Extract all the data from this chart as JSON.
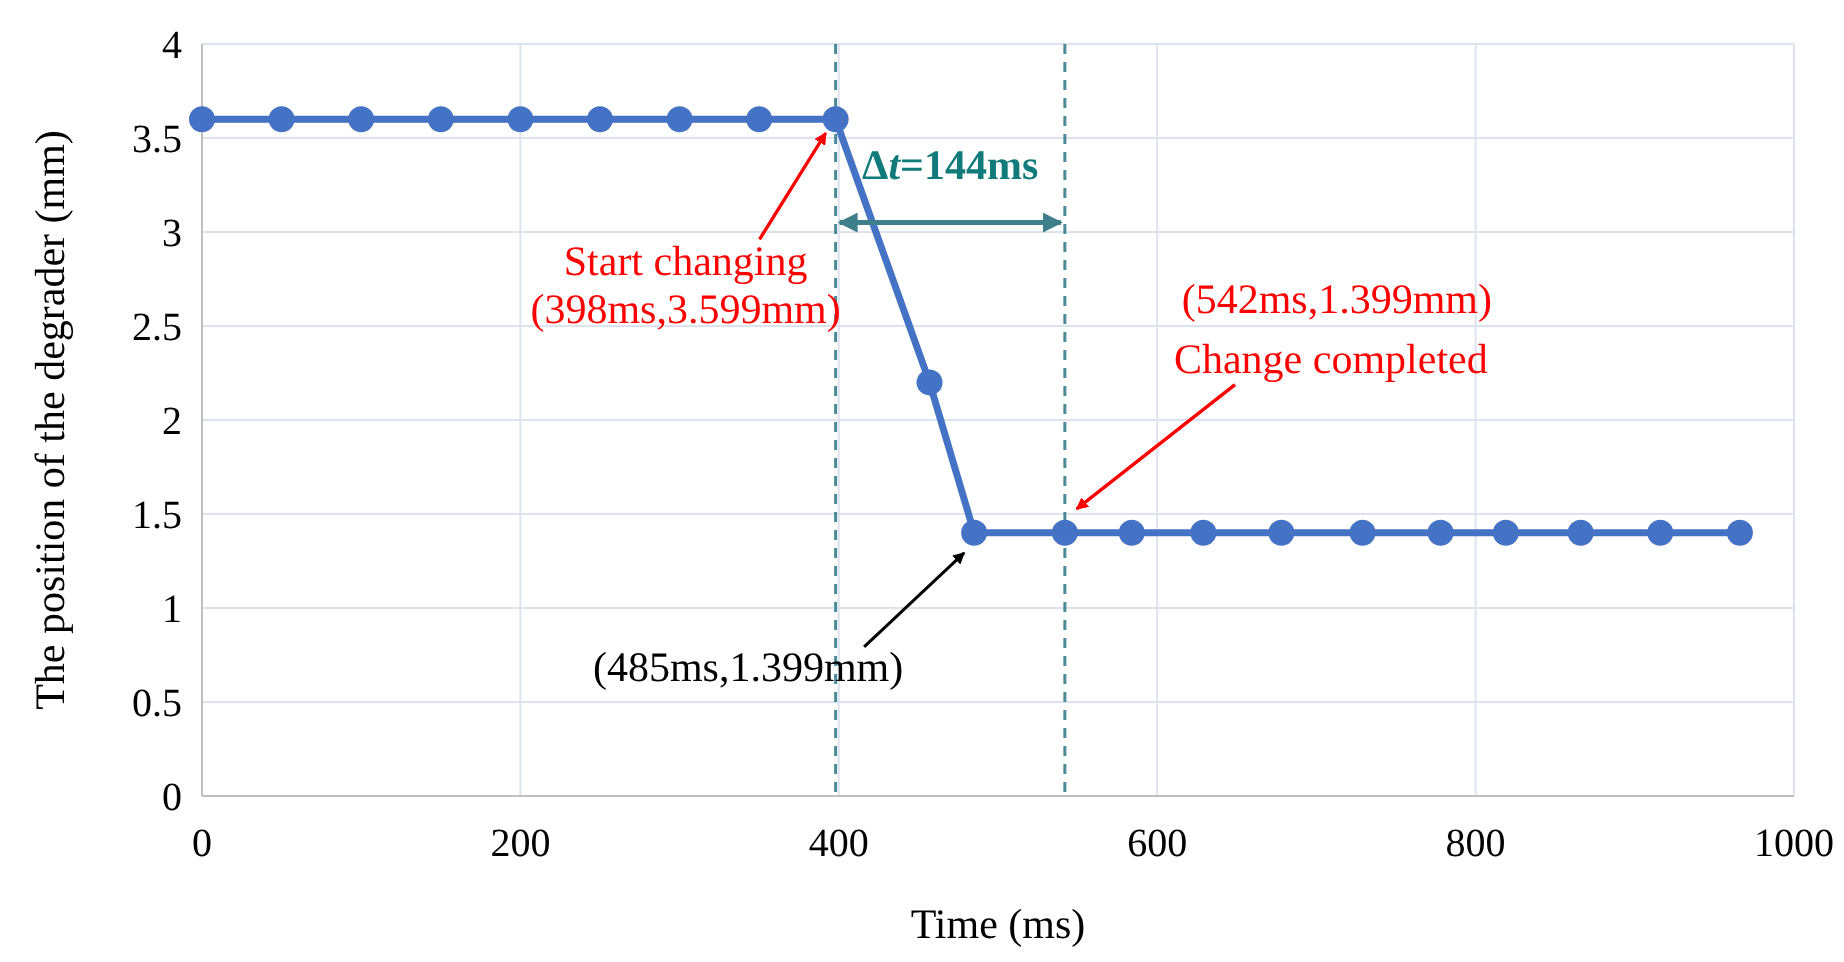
{
  "chart_data": {
    "type": "line",
    "xlabel": "Time (ms)",
    "ylabel": "The position of the degrader (mm)",
    "x": [
      0,
      50,
      100,
      150,
      200,
      250,
      300,
      350,
      398,
      457,
      485,
      542,
      584,
      629,
      678,
      729,
      778,
      819,
      866,
      916,
      966
    ],
    "series": [
      {
        "color": "#4472c4",
        "values": [
          3.6,
          3.6,
          3.6,
          3.6,
          3.6,
          3.6,
          3.6,
          3.6,
          3.6,
          2.2,
          1.4,
          1.4,
          1.4,
          1.4,
          1.4,
          1.4,
          1.4,
          1.4,
          1.4,
          1.4,
          1.4
        ]
      }
    ],
    "xlim": [
      0,
      1000
    ],
    "xticks": [
      0,
      200,
      400,
      600,
      800,
      1000
    ],
    "ylim": [
      0,
      4
    ],
    "yticks": [
      0,
      {
        "value": 0.5,
        "label": "0.5"
      },
      1,
      {
        "value": 1.5,
        "label": "1.5"
      },
      2,
      {
        "value": 2.5,
        "label": "2.5"
      },
      3,
      {
        "value": 3.5,
        "label": "3.5"
      },
      4
    ],
    "grid": true,
    "marker": "circle",
    "line_style": "solid",
    "ref_lines": [
      {
        "axis": "x",
        "value": 398,
        "color": "#4a8a99",
        "line_style": "dashed"
      },
      {
        "axis": "x",
        "value": 542,
        "color": "#4a8a99",
        "line_style": "dashed"
      }
    ],
    "annotations": [
      {
        "text": "Start changing",
        "x": 398,
        "y": 3.6
      },
      "(398ms,3.599mm)",
      "(542ms,1.399mm)",
      "Change completed",
      "(485ms,1.399mm)",
      {
        "text": "Δt=144ms",
        "x": 542,
        "y": 3.05
      }
    ]
  }
}
